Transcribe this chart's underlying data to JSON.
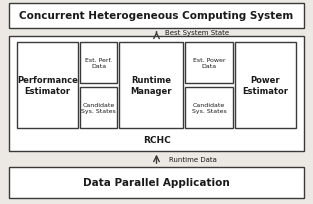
{
  "bg_color": "#ece9e4",
  "box_color": "#ffffff",
  "border_color": "#3a3a3a",
  "text_color": "#1a1a1a",
  "title_top": "Data Parallel Application",
  "title_bottom": "Concurrent Heterogeneous Computing System",
  "rchc_label": "RCHC",
  "perf_est_label": "Performance\nEstimator",
  "runtime_mgr_label": "Runtime\nManager",
  "power_est_label": "Power\nEstimator",
  "candidate_left_label": "Candidate\nSys. States",
  "candidate_right_label": "Candidate\nSys. States",
  "est_perf_label": "Est. Perf.\nData",
  "est_power_label": "Est. Power\nData",
  "arrow_down_label": "Runtime Data",
  "arrow_up_label": "Best System State",
  "lw": 1.0,
  "fig_w": 3.13,
  "fig_h": 2.05,
  "dpi": 100
}
